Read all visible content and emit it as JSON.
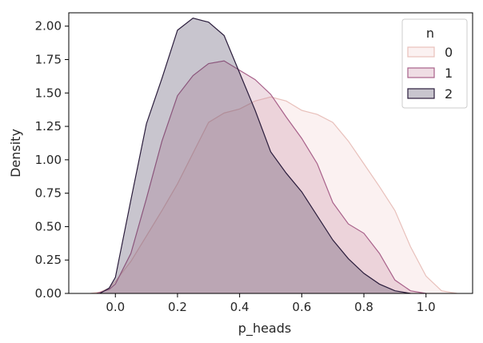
{
  "chart_data": {
    "type": "area",
    "title": "",
    "xlabel": "p_heads",
    "ylabel": "Density",
    "xlim": [
      -0.15,
      1.15
    ],
    "ylim": [
      0,
      2.1
    ],
    "xticks": [
      "0.0",
      "0.2",
      "0.4",
      "0.6",
      "0.8",
      "1.0"
    ],
    "xtick_values": [
      0.0,
      0.2,
      0.4,
      0.6,
      0.8,
      1.0
    ],
    "yticks": [
      "0.00",
      "0.25",
      "0.50",
      "0.75",
      "1.00",
      "1.25",
      "1.50",
      "1.75",
      "2.00"
    ],
    "ytick_values": [
      0,
      0.25,
      0.5,
      0.75,
      1.0,
      1.25,
      1.5,
      1.75,
      2.0
    ],
    "grid": false,
    "legend": {
      "title": "n",
      "placement": "top-right"
    },
    "series": [
      {
        "name": "0",
        "fill": "#f2d2cf",
        "stroke": "#e8c0bb",
        "points": [
          [
            -0.08,
            0.0
          ],
          [
            -0.05,
            0.01
          ],
          [
            -0.02,
            0.04
          ],
          [
            0.0,
            0.09
          ],
          [
            0.05,
            0.24
          ],
          [
            0.1,
            0.43
          ],
          [
            0.15,
            0.62
          ],
          [
            0.2,
            0.82
          ],
          [
            0.25,
            1.05
          ],
          [
            0.3,
            1.28
          ],
          [
            0.35,
            1.35
          ],
          [
            0.4,
            1.38
          ],
          [
            0.45,
            1.44
          ],
          [
            0.5,
            1.47
          ],
          [
            0.55,
            1.44
          ],
          [
            0.6,
            1.37
          ],
          [
            0.65,
            1.34
          ],
          [
            0.7,
            1.28
          ],
          [
            0.75,
            1.14
          ],
          [
            0.8,
            0.97
          ],
          [
            0.85,
            0.8
          ],
          [
            0.9,
            0.62
          ],
          [
            0.95,
            0.35
          ],
          [
            1.0,
            0.13
          ],
          [
            1.05,
            0.02
          ],
          [
            1.1,
            0.0
          ]
        ]
      },
      {
        "name": "1",
        "fill": "#c98ea6",
        "stroke": "#a8618a",
        "points": [
          [
            -0.06,
            0.0
          ],
          [
            -0.02,
            0.03
          ],
          [
            0.0,
            0.07
          ],
          [
            0.05,
            0.3
          ],
          [
            0.1,
            0.71
          ],
          [
            0.15,
            1.14
          ],
          [
            0.2,
            1.48
          ],
          [
            0.25,
            1.63
          ],
          [
            0.3,
            1.72
          ],
          [
            0.35,
            1.74
          ],
          [
            0.4,
            1.67
          ],
          [
            0.45,
            1.6
          ],
          [
            0.5,
            1.49
          ],
          [
            0.55,
            1.32
          ],
          [
            0.6,
            1.16
          ],
          [
            0.65,
            0.97
          ],
          [
            0.7,
            0.68
          ],
          [
            0.75,
            0.52
          ],
          [
            0.8,
            0.45
          ],
          [
            0.85,
            0.3
          ],
          [
            0.9,
            0.1
          ],
          [
            0.95,
            0.02
          ],
          [
            1.0,
            0.0
          ]
        ]
      },
      {
        "name": "2",
        "fill": "#4a3f5e",
        "stroke": "#2b1d3c",
        "points": [
          [
            -0.05,
            0.0
          ],
          [
            -0.02,
            0.04
          ],
          [
            0.0,
            0.12
          ],
          [
            0.05,
            0.7
          ],
          [
            0.1,
            1.27
          ],
          [
            0.15,
            1.61
          ],
          [
            0.2,
            1.97
          ],
          [
            0.25,
            2.06
          ],
          [
            0.3,
            2.03
          ],
          [
            0.35,
            1.93
          ],
          [
            0.4,
            1.65
          ],
          [
            0.45,
            1.37
          ],
          [
            0.5,
            1.06
          ],
          [
            0.55,
            0.9
          ],
          [
            0.6,
            0.76
          ],
          [
            0.65,
            0.58
          ],
          [
            0.7,
            0.4
          ],
          [
            0.75,
            0.26
          ],
          [
            0.8,
            0.15
          ],
          [
            0.85,
            0.07
          ],
          [
            0.9,
            0.02
          ],
          [
            0.95,
            0.0
          ]
        ]
      }
    ]
  }
}
